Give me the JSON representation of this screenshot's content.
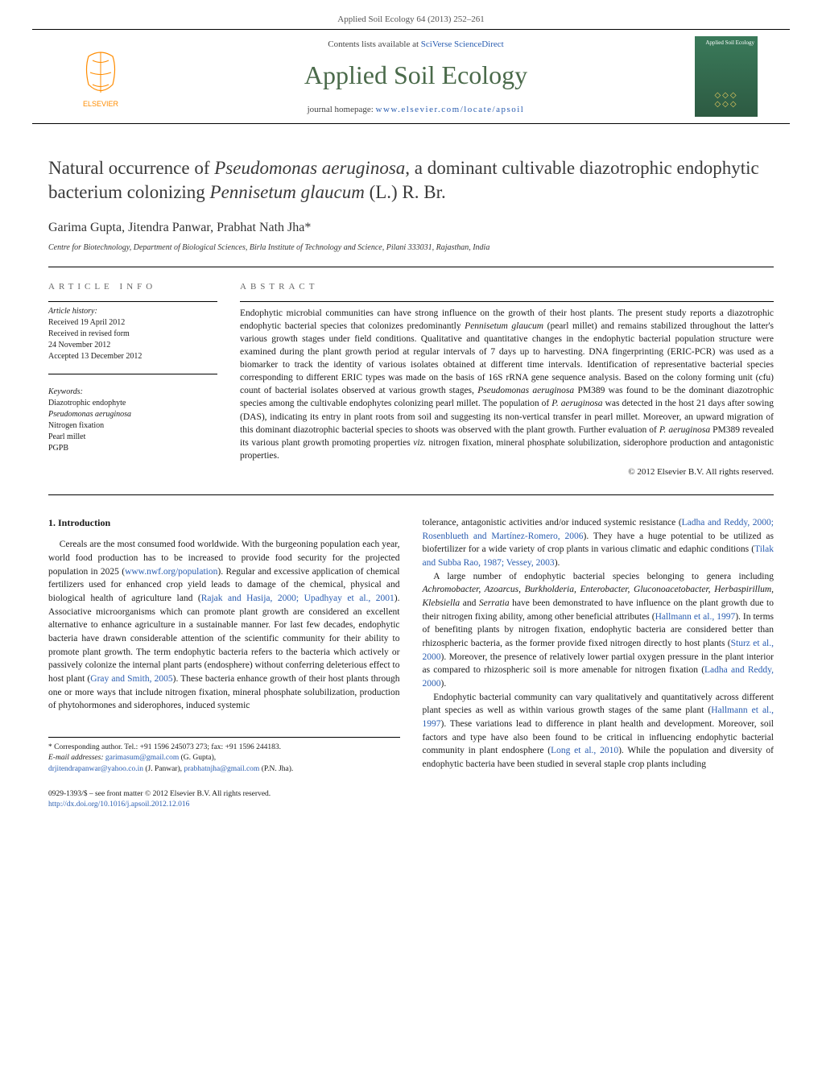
{
  "header": {
    "citation": "Applied Soil Ecology 64 (2013) 252–261",
    "contents_prefix": "Contents lists available at ",
    "contents_link": "SciVerse ScienceDirect",
    "journal_name": "Applied Soil Ecology",
    "homepage_prefix": "journal homepage: ",
    "homepage_url": "www.elsevier.com/locate/apsoil",
    "cover_title": "Applied Soil Ecology"
  },
  "article": {
    "title_html": "Natural occurrence of <em>Pseudomonas aeruginosa</em>, a dominant cultivable diazotrophic endophytic bacterium colonizing <em>Pennisetum glaucum</em> (L.) R. Br.",
    "authors": "Garima Gupta, Jitendra Panwar, Prabhat Nath Jha*",
    "affiliation": "Centre for Biotechnology, Department of Biological Sciences, Birla Institute of Technology and Science, Pilani 333031, Rajasthan, India"
  },
  "meta": {
    "article_info_label": "article info",
    "history_label": "Article history:",
    "history": [
      "Received 19 April 2012",
      "Received in revised form",
      "24 November 2012",
      "Accepted 13 December 2012"
    ],
    "keywords_label": "Keywords:",
    "keywords": [
      "Diazotrophic endophyte",
      "<em>Pseudomonas aeruginosa</em>",
      "Nitrogen fixation",
      "Pearl millet",
      "PGPB"
    ]
  },
  "abstract": {
    "label": "abstract",
    "text_html": "Endophytic microbial communities can have strong influence on the growth of their host plants. The present study reports a diazotrophic endophytic bacterial species that colonizes predominantly <em>Pennisetum glaucum</em> (pearl millet) and remains stabilized throughout the latter's various growth stages under field conditions. Qualitative and quantitative changes in the endophytic bacterial population structure were examined during the plant growth period at regular intervals of 7 days up to harvesting. DNA fingerprinting (ERIC-PCR) was used as a biomarker to track the identity of various isolates obtained at different time intervals. Identification of representative bacterial species corresponding to different ERIC types was made on the basis of 16S rRNA gene sequence analysis. Based on the colony forming unit (cfu) count of bacterial isolates observed at various growth stages, <em>Pseudomonas aeruginosa</em> PM389 was found to be the dominant diazotrophic species among the cultivable endophytes colonizing pearl millet. The population of <em>P. aeruginosa</em> was detected in the host 21 days after sowing (DAS), indicating its entry in plant roots from soil and suggesting its non-vertical transfer in pearl millet. Moreover, an upward migration of this dominant diazotrophic bacterial species to shoots was observed with the plant growth. Further evaluation of <em>P. aeruginosa</em> PM389 revealed its various plant growth promoting properties <em>viz.</em> nitrogen fixation, mineral phosphate solubilization, siderophore production and antagonistic properties.",
    "copyright": "© 2012 Elsevier B.V. All rights reserved."
  },
  "body": {
    "section_heading": "1. Introduction",
    "p1_html": "Cereals are the most consumed food worldwide. With the burgeoning population each year, world food production has to be increased to provide food security for the projected population in 2025 (<a href='#'>www.nwf.org/population</a>). Regular and excessive application of chemical fertilizers used for enhanced crop yield leads to damage of the chemical, physical and biological health of agriculture land (<a href='#'>Rajak and Hasija, 2000; Upadhyay et al., 2001</a>). Associative microorganisms which can promote plant growth are considered an excellent alternative to enhance agriculture in a sustainable manner. For last few decades, endophytic bacteria have drawn considerable attention of the scientific community for their ability to promote plant growth. The term endophytic bacteria refers to the bacteria which actively or passively colonize the internal plant parts (endosphere) without conferring deleterious effect to host plant (<a href='#'>Gray and Smith, 2005</a>). These bacteria enhance growth of their host plants through one or more ways that include nitrogen fixation, mineral phosphate solubilization, production of phytohormones and siderophores, induced systemic",
    "p2_html": "tolerance, antagonistic activities and/or induced systemic resistance (<a href='#'>Ladha and Reddy, 2000; Rosenblueth and Martínez-Romero, 2006</a>). They have a huge potential to be utilized as biofertilizer for a wide variety of crop plants in various climatic and edaphic conditions (<a href='#'>Tilak and Subba Rao, 1987; Vessey, 2003</a>).",
    "p3_html": "A large number of endophytic bacterial species belonging to genera including <em>Achromobacter, Azoarcus, Burkholderia, Enterobacter, Gluconoacetobacter, Herbaspirillum, Klebsiella</em> and <em>Serratia</em> have been demonstrated to have influence on the plant growth due to their nitrogen fixing ability, among other beneficial attributes (<a href='#'>Hallmann et al., 1997</a>). In terms of benefiting plants by nitrogen fixation, endophytic bacteria are considered better than rhizospheric bacteria, as the former provide fixed nitrogen directly to host plants (<a href='#'>Sturz et al., 2000</a>). Moreover, the presence of relatively lower partial oxygen pressure in the plant interior as compared to rhizospheric soil is more amenable for nitrogen fixation (<a href='#'>Ladha and Reddy, 2000</a>).",
    "p4_html": "Endophytic bacterial community can vary qualitatively and quantitatively across different plant species as well as within various growth stages of the same plant (<a href='#'>Hallmann et al., 1997</a>). These variations lead to difference in plant health and development. Moreover, soil factors and type have also been found to be critical in influencing endophytic bacterial community in plant endosphere (<a href='#'>Long et al., 2010</a>). While the population and diversity of endophytic bacteria have been studied in several staple crop plants including"
  },
  "footer": {
    "corresponding": "* Corresponding author. Tel.: +91 1596 245073 273; fax: +91 1596 244183.",
    "emails_label": "E-mail addresses:",
    "email1": "garimasum@gmail.com",
    "email1_name": " (G. Gupta),",
    "email2": "drjitendrapanwar@yahoo.co.in",
    "email2_name": " (J. Panwar), ",
    "email3": "prabhatnjha@gmail.com",
    "email3_name": " (P.N. Jha)."
  },
  "doi": {
    "line1": "0929-1393/$ – see front matter © 2012 Elsevier B.V. All rights reserved.",
    "line2_url": "http://dx.doi.org/10.1016/j.apsoil.2012.12.016"
  },
  "colors": {
    "link": "#2a5db0",
    "journal_green": "#4a6a4a",
    "cover_green_top": "#3a7a5a",
    "cover_green_bottom": "#2d5a42",
    "text": "#1a1a1a",
    "background": "#ffffff"
  }
}
